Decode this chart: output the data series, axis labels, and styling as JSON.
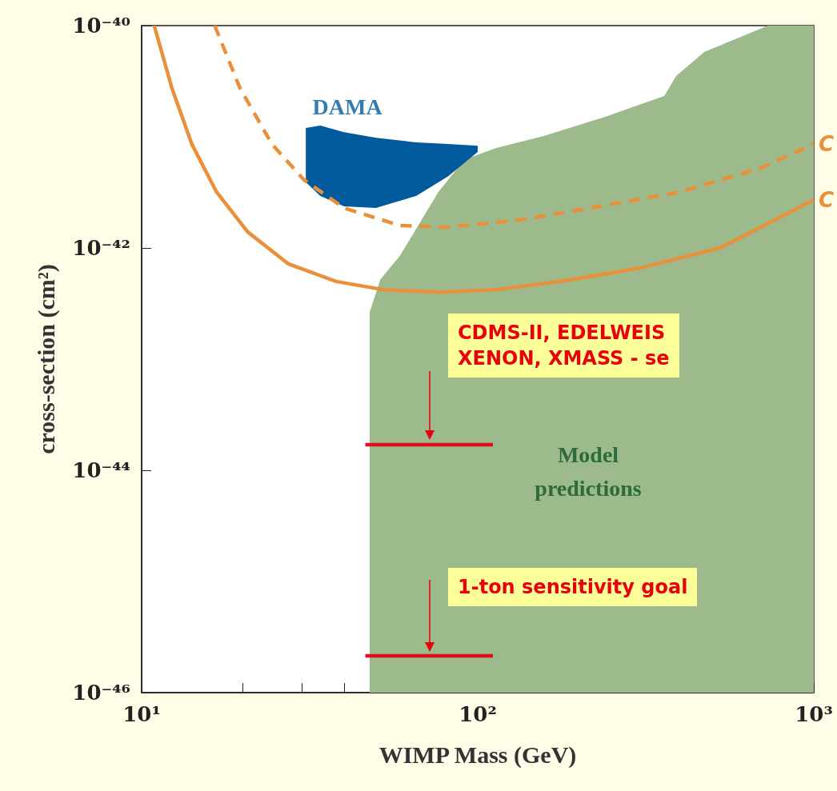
{
  "chart_data": {
    "type": "line",
    "xlabel": "WIMP Mass (GeV)",
    "ylabel": "cross-section (cm²)",
    "log": "xy",
    "grid": false,
    "legend": false,
    "marker": "none",
    "xlim": [
      10,
      1000
    ],
    "ylim": [
      1e-46,
      1e-40
    ],
    "xticks": [
      {
        "value": 10,
        "label": "10¹"
      },
      {
        "value": 20,
        "label": null
      },
      {
        "value": 30,
        "label": null
      },
      {
        "value": 40,
        "label": null
      },
      {
        "value": 50,
        "label": null
      },
      {
        "value": 60,
        "label": null
      },
      {
        "value": 70,
        "label": null
      },
      {
        "value": 80,
        "label": null
      },
      {
        "value": 90,
        "label": null
      },
      {
        "value": 100,
        "label": "10²"
      },
      {
        "value": 200,
        "label": null
      },
      {
        "value": 300,
        "label": null
      },
      {
        "value": 400,
        "label": null
      },
      {
        "value": 500,
        "label": null
      },
      {
        "value": 600,
        "label": null
      },
      {
        "value": 700,
        "label": null
      },
      {
        "value": 800,
        "label": null
      },
      {
        "value": 900,
        "label": null
      },
      {
        "value": 1000,
        "label": "10³"
      }
    ],
    "yticks": [
      {
        "value": 1e-46,
        "label": "10⁻⁴⁶"
      },
      {
        "value": 1e-44,
        "label": "10⁻⁴⁴"
      },
      {
        "value": 1e-42,
        "label": "10⁻⁴²"
      },
      {
        "value": 1e-40,
        "label": "10⁻⁴⁰"
      }
    ],
    "series": [
      {
        "type": "area",
        "color": "#9cba8c",
        "x": [
          47.7,
          51.3,
          58.7,
          76.4,
          91.2,
          113,
          158,
          244,
          359,
          389,
          472,
          731,
          1000
        ],
        "values": [
          2.65e-43,
          5.2e-43,
          8.5e-43,
          3.19e-42,
          6.2e-42,
          7.9e-42,
          1.02e-41,
          1.54e-41,
          2.33e-41,
          3.5e-41,
          5.8e-41,
          1e-40,
          1e-40
        ]
      },
      {
        "type": "area",
        "name": "DAMA",
        "color": "#005a9c",
        "x": [
          30.8,
          34.0,
          40.0,
          49.8,
          65.6,
          81.6,
          100,
          100,
          81.6,
          65.6,
          49.8,
          40.0,
          34.0,
          30.8
        ],
        "values": [
          1.2e-41,
          1.26e-41,
          1.1e-41,
          9.8e-42,
          8.9e-42,
          8.6e-42,
          8.3e-42,
          7.3e-42,
          4.4e-42,
          2.94e-42,
          2.29e-42,
          2.37e-42,
          2.94e-42,
          3.9e-42
        ]
      },
      {
        "type": "line",
        "name": "C",
        "color": "#e8913a",
        "line_style": "dashed",
        "x": [
          16.5,
          19.6,
          24.4,
          30.4,
          40,
          58.7,
          81.6,
          134,
          231,
          400,
          692,
          1000
        ],
        "values": [
          1e-40,
          2.75e-41,
          8.6e-42,
          4.1e-42,
          2.29e-42,
          1.59e-42,
          1.54e-42,
          1.79e-42,
          2.37e-42,
          3.19e-42,
          5.2e-42,
          8.6e-42
        ]
      },
      {
        "name": "C",
        "color": "#e8913a",
        "line_style": "solid",
        "x": [
          10.9,
          12.3,
          14.1,
          16.7,
          20.7,
          27.3,
          37.9,
          52.6,
          77.3,
          113,
          176,
          304,
          526,
          1000
        ],
        "values": [
          1e-40,
          2.75e-41,
          8.6e-42,
          3.19e-42,
          1.39e-42,
          7.2e-43,
          5e-43,
          4.2e-43,
          4e-43,
          4.2e-43,
          5e-43,
          6.6e-43,
          1e-42,
          2.7e-42
        ]
      },
      {
        "type": "line",
        "color": "#e0101e",
        "line_style": "solid",
        "x": [
          46.3,
          111
        ],
        "values": [
          1.7e-44,
          1.7e-44
        ]
      },
      {
        "type": "line",
        "color": "#e0101e",
        "line_style": "solid",
        "x": [
          46.3,
          111
        ],
        "values": [
          2.14e-46,
          2.14e-46
        ]
      }
    ],
    "annotations": [
      "Model\npredictions",
      "CDMS-II, EDELWEIS\nXENON, XMASS - se",
      "1-ton sensitivity goal"
    ]
  }
}
